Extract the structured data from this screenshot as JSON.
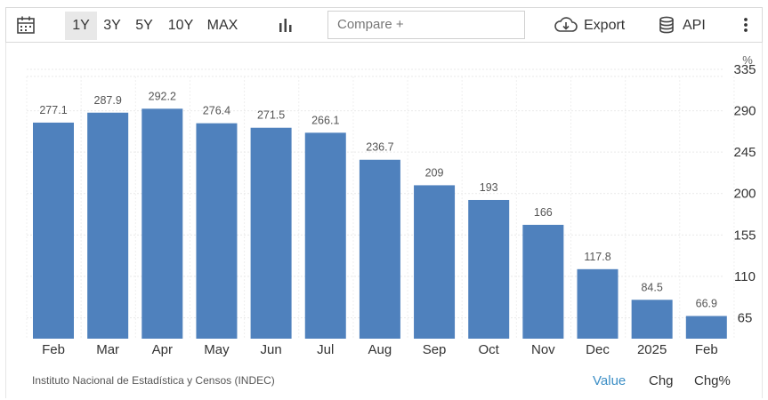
{
  "toolbar": {
    "ranges": [
      "1Y",
      "3Y",
      "5Y",
      "10Y",
      "MAX"
    ],
    "active_range": "1Y",
    "compare_placeholder": "Compare +",
    "export_label": "Export",
    "api_label": "API"
  },
  "footer": {
    "source": "Instituto Nacional de Estadística y Censos (INDEC)",
    "modes": [
      "Value",
      "Chg",
      "Chg%"
    ],
    "active_mode": "Value"
  },
  "colors": {
    "bar": "#4f81bd",
    "active_mode": "#3d8fc6"
  },
  "chart_data": {
    "type": "bar",
    "unit": "%",
    "categories": [
      "Feb",
      "Mar",
      "Apr",
      "May",
      "Jun",
      "Jul",
      "Aug",
      "Sep",
      "Oct",
      "Nov",
      "Dec",
      "2025",
      "Feb"
    ],
    "values": [
      277.1,
      287.9,
      292.2,
      276.4,
      271.5,
      266.1,
      236.7,
      209,
      193,
      166,
      117.8,
      84.5,
      66.9
    ],
    "value_labels": [
      "277.1",
      "287.9",
      "292.2",
      "276.4",
      "271.5",
      "266.1",
      "236.7",
      "209",
      "193",
      "166",
      "117.8",
      "84.5",
      "66.9"
    ],
    "y_ticks": [
      65,
      110,
      155,
      200,
      245,
      290,
      335
    ],
    "ylim": [
      50,
      335
    ],
    "grid": true,
    "y_axis_position": "right"
  }
}
